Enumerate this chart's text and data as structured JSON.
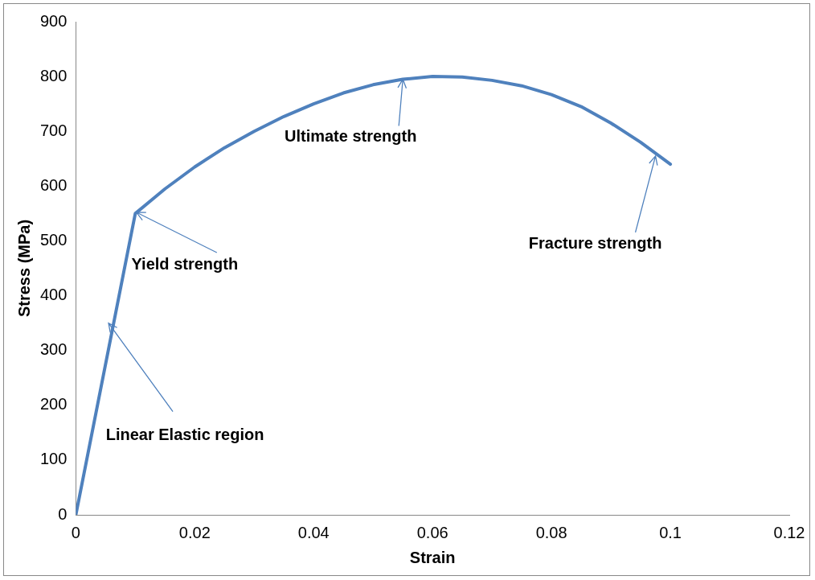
{
  "chart_data": {
    "type": "line",
    "xlabel": "Strain",
    "ylabel": "Stress (MPa)",
    "x": [
      0,
      0.01,
      0.015,
      0.02,
      0.025,
      0.03,
      0.035,
      0.04,
      0.045,
      0.05,
      0.055,
      0.06,
      0.065,
      0.07,
      0.075,
      0.08,
      0.085,
      0.09,
      0.095,
      0.1
    ],
    "series": [
      {
        "color": "#4f81bd",
        "values": [
          0,
          550,
          595,
          635,
          670,
          700,
          727,
          750,
          770,
          785,
          795,
          800,
          799,
          793,
          783,
          767,
          745,
          715,
          680,
          640
        ]
      }
    ],
    "xlim": [
      0,
      0.12
    ],
    "xticks": [
      0,
      0.02,
      0.04,
      0.06,
      0.08,
      0.1,
      0.12
    ],
    "ylim": [
      0,
      900
    ],
    "yticks": [
      0,
      100,
      200,
      300,
      400,
      500,
      600,
      700,
      800,
      900
    ],
    "grid": false,
    "legend": false,
    "marker": "none",
    "line_style": "solid",
    "annotations": [
      {
        "text": "Linear Elastic region",
        "x": 0.0055,
        "y": 350
      },
      {
        "text": "Yield strength",
        "x": 0.0102,
        "y": 552
      },
      {
        "text": "Ultimate strength",
        "x": 0.055,
        "y": 795
      },
      {
        "text": "Fracture strength",
        "x": 0.0975,
        "y": 655
      }
    ]
  }
}
